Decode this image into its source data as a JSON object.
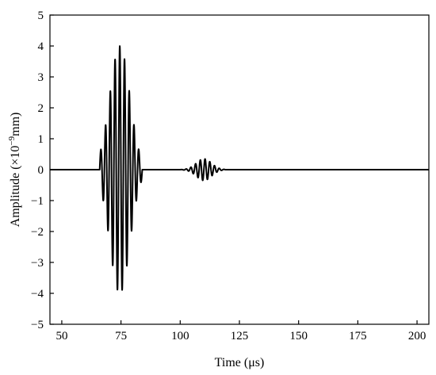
{
  "chart_data": {
    "type": "line",
    "title": "",
    "xlabel": "Time (μs)",
    "ylabel_parts": {
      "prefix": "Amplitude (×10",
      "exponent": "−9",
      "suffix": "mm)"
    },
    "xlim": [
      45,
      205
    ],
    "ylim": [
      -5,
      5
    ],
    "x_ticks": [
      50,
      75,
      100,
      125,
      150,
      175,
      200
    ],
    "y_ticks": [
      5,
      4,
      3,
      2,
      1,
      0,
      -1,
      -2,
      -3,
      -4,
      -5
    ],
    "grid": false,
    "legend": "none",
    "line_color": "#000000",
    "series": [
      {
        "signal_range": [
          45,
          205
        ],
        "packets": [
          {
            "center_us": 74.5,
            "sigma_us": 4.2,
            "frequency_mhz": 0.5,
            "peak_amplitude": 4.0,
            "phase": 1.6,
            "support_us": [
              66,
              84
            ]
          },
          {
            "center_us": 110.0,
            "sigma_us": 3.2,
            "frequency_mhz": 0.5,
            "peak_amplitude": 0.35,
            "phase": 0.0,
            "support_us": [
              100,
              119
            ]
          }
        ]
      }
    ]
  }
}
